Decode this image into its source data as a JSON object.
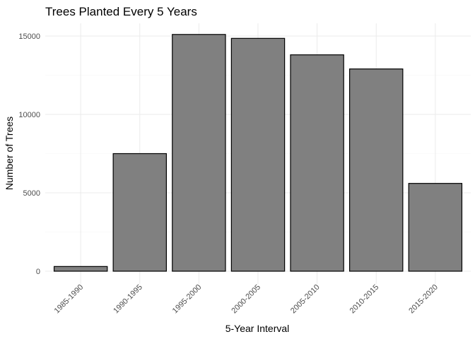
{
  "chart_data": {
    "type": "bar",
    "title": "Trees Planted Every 5 Years",
    "xlabel": "5-Year Interval",
    "ylabel": "Number of Trees",
    "categories": [
      "1985-1990",
      "1990-1995",
      "1995-2000",
      "2000-2005",
      "2005-2010",
      "2010-2015",
      "2015-2020"
    ],
    "values": [
      300,
      7500,
      15100,
      14850,
      13800,
      12900,
      5600
    ],
    "ylim": [
      0,
      15800
    ],
    "yticks": [
      0,
      5000,
      10000,
      15000
    ],
    "grid": true,
    "bar_color": "#808080",
    "bar_outline": "#000000"
  }
}
